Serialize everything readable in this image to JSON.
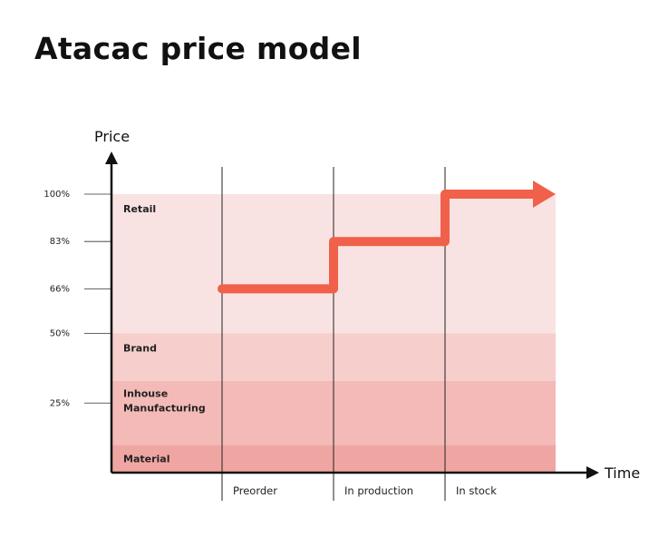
{
  "title": "Atacac price model",
  "chart_data": {
    "type": "line",
    "title": "Atacac price model",
    "xlabel": "Time",
    "ylabel": "Price",
    "ylim": [
      0,
      100
    ],
    "y_ticks": [
      {
        "value": 100,
        "label": "100%"
      },
      {
        "value": 83,
        "label": "83%"
      },
      {
        "value": 66,
        "label": "66%"
      },
      {
        "value": 50,
        "label": "50%"
      },
      {
        "value": 25,
        "label": "25%"
      }
    ],
    "phases": [
      "Preorder",
      "In production",
      "In stock"
    ],
    "bands": [
      {
        "label": [
          "Material"
        ],
        "from": 0,
        "to": 10,
        "color": "#EFA6A3"
      },
      {
        "label": [
          "Inhouse",
          "Manufacturing"
        ],
        "from": 10,
        "to": 33,
        "color": "#F3BAB7"
      },
      {
        "label": [
          "Brand"
        ],
        "from": 33,
        "to": 50,
        "color": "#F6CECC"
      },
      {
        "label": [
          "Retail"
        ],
        "from": 50,
        "to": 100,
        "color": "#F9E3E2"
      }
    ],
    "series": [
      {
        "values": [
          66,
          83,
          100
        ],
        "color": "#F0604A"
      }
    ],
    "grid": false
  }
}
